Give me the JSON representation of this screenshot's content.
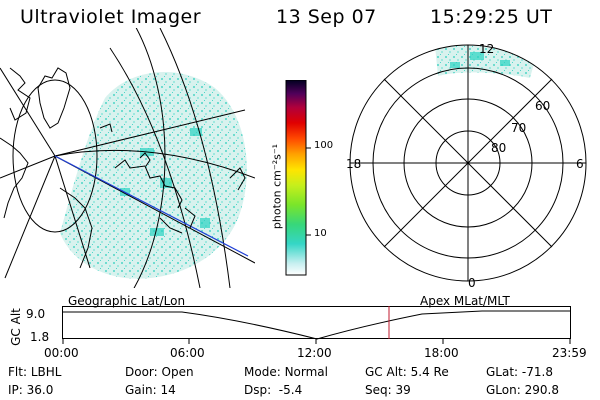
{
  "header": {
    "instrument": "Ultraviolet Imager",
    "date": "13 Sep 07",
    "time": "15:29:25 UT"
  },
  "colorbar": {
    "unit_label": "photon cm⁻²s⁻¹",
    "ticks": [
      "100",
      "10"
    ]
  },
  "polar": {
    "mlt_labels": [
      "12",
      "18",
      "6",
      "0"
    ],
    "lat_labels": [
      "60",
      "70",
      "80"
    ]
  },
  "timeline": {
    "left_title": "Geographic Lat/Lon",
    "right_title": "Apex MLat/MLT",
    "y_axis_label": "GC Alt",
    "y_ticks": [
      "9.0",
      "1.8"
    ],
    "x_ticks": [
      "00:00",
      "06:00",
      "12:00",
      "18:00",
      "23:59"
    ]
  },
  "status": {
    "flt_label": "Flt:",
    "flt_value": "LBHL",
    "door_label": "Door:",
    "door_value": "Open",
    "mode_label": "Mode:",
    "mode_value": "Normal",
    "gcalt_label": "GC Alt:",
    "gcalt_value": "5.4 Re",
    "glat_label": "GLat:",
    "glat_value": "-71.8",
    "ip_label": "IP:",
    "ip_value": "36.0",
    "gain_label": "Gain:",
    "gain_value": "14",
    "dsp_label": "Dsp:",
    "dsp_value": "-5.4",
    "seq_label": "Seq:",
    "seq_value": "39",
    "glon_label": "GLon:",
    "glon_value": "290.8"
  }
}
